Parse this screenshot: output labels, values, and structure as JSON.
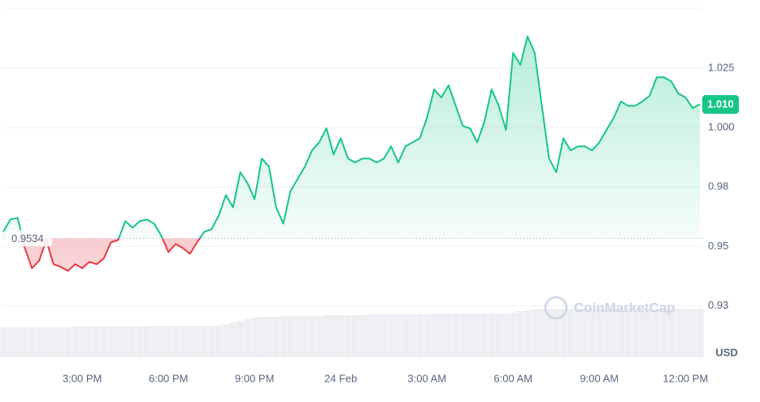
{
  "chart_data": {
    "type": "line",
    "series": [
      {
        "name": "USD",
        "color": "#16c784",
        "color_below": "#ea3943",
        "values": [
          0.9562,
          0.9613,
          0.962,
          0.9493,
          0.9408,
          0.944,
          0.9527,
          0.9425,
          0.9414,
          0.9397,
          0.9425,
          0.9408,
          0.9435,
          0.9425,
          0.9449,
          0.9517,
          0.9527,
          0.9606,
          0.9579,
          0.9606,
          0.9613,
          0.9596,
          0.9545,
          0.9476,
          0.951,
          0.9493,
          0.9469,
          0.9517,
          0.9562,
          0.9572,
          0.963,
          0.9716,
          0.9664,
          0.9812,
          0.9767,
          0.9699,
          0.987,
          0.9836,
          0.9664,
          0.9596,
          0.9733,
          0.9784,
          0.9836,
          0.9904,
          0.9938,
          0.9997,
          0.9887,
          0.9955,
          0.987,
          0.9853,
          0.987,
          0.987,
          0.9853,
          0.987,
          0.9921,
          0.9853,
          0.9921,
          0.9938,
          0.9955,
          1.0041,
          1.0161,
          1.0127,
          1.0178,
          1.0092,
          1.0007,
          0.9997,
          0.9938,
          1.0024,
          1.0161,
          1.0092,
          0.999,
          1.0315,
          1.0264,
          1.0384,
          1.0315,
          1.0092,
          0.987,
          0.9812,
          0.9955,
          0.9904,
          0.9921,
          0.9921,
          0.9904,
          0.9938,
          0.999,
          1.0041,
          1.011,
          1.0092,
          1.0092,
          1.011,
          1.0134,
          1.0212,
          1.0212,
          1.0195,
          1.0144,
          1.0127,
          1.0082,
          1.0099
        ]
      }
    ],
    "volume": [
      37,
      37,
      37,
      37,
      37,
      37,
      37,
      37,
      37,
      37,
      38,
      38,
      38,
      38,
      38,
      38,
      38,
      38,
      38,
      38,
      38,
      39,
      39,
      39,
      39,
      39,
      39,
      39,
      39,
      39,
      39,
      41,
      43,
      45,
      47,
      49,
      50,
      50,
      50,
      51,
      51,
      51,
      51,
      51,
      51,
      52,
      52,
      52,
      52,
      52,
      52,
      53,
      53,
      53,
      53,
      53,
      53,
      53,
      53,
      53,
      54,
      54,
      54,
      54,
      54,
      54,
      54,
      54,
      54,
      54,
      54,
      55,
      57,
      58,
      59,
      60,
      60,
      60,
      60,
      60,
      60,
      60,
      60,
      60,
      60,
      60,
      60,
      60,
      60,
      60,
      60,
      60,
      60,
      60,
      60,
      60,
      60,
      60
    ],
    "volume_ylim": [
      0,
      100
    ],
    "baseline": 0.9534,
    "current_price": {
      "value": 1.0099,
      "label": "1.010"
    },
    "xlim": [
      0,
      97
    ],
    "xticks": [
      {
        "value": 11,
        "label": "3:00 PM"
      },
      {
        "value": 23,
        "label": "6:00 PM"
      },
      {
        "value": 35,
        "label": "9:00 PM"
      },
      {
        "value": 47,
        "label": "24 Feb"
      },
      {
        "value": 59,
        "label": "3:00 AM"
      },
      {
        "value": 71,
        "label": "6:00 AM"
      },
      {
        "value": 83,
        "label": "9:00 AM"
      },
      {
        "value": 95,
        "label": "12:00 PM"
      }
    ],
    "ylim": [
      0.9033,
      1.0503
    ],
    "yticks": [
      {
        "value": 0.925,
        "label": "0.93"
      },
      0.95,
      {
        "value": 0.975,
        "label": "0.98"
      },
      {
        "value": 1,
        "label": "1.000"
      },
      1.025
    ],
    "y_axis_label": "USD",
    "watermark": "CoinMarketCap",
    "grid": true
  }
}
